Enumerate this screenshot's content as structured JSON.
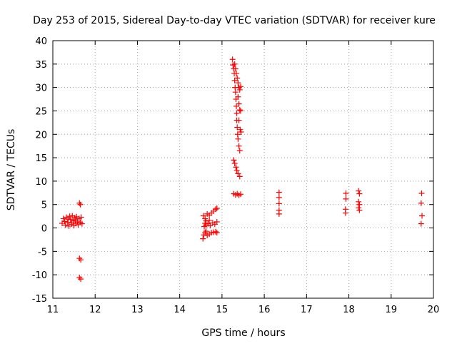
{
  "chart_data": {
    "type": "scatter",
    "title": "Day 253 of 2015, Sidereal Day-to-day VTEC variation (SDTVAR) for receiver kure",
    "xlabel": "GPS time / hours",
    "ylabel": "SDTVAR / TECUs",
    "xlim": [
      11,
      20
    ],
    "ylim": [
      -15,
      40
    ],
    "xticks": [
      "11",
      "12",
      "13",
      "14",
      "15",
      "16",
      "17",
      "18",
      "19",
      "20"
    ],
    "yticks": [
      "-15",
      "-10",
      "-5",
      "0",
      "5",
      "10",
      "15",
      "20",
      "25",
      "30",
      "35",
      "40"
    ],
    "grid": true,
    "marker": "plus",
    "color": "#ff0000",
    "points": [
      [
        11.22,
        1.0
      ],
      [
        11.25,
        2.0
      ],
      [
        11.28,
        1.4
      ],
      [
        11.3,
        0.6
      ],
      [
        11.32,
        2.3
      ],
      [
        11.35,
        1.2
      ],
      [
        11.38,
        0.4
      ],
      [
        11.4,
        2.5
      ],
      [
        11.42,
        1.8
      ],
      [
        11.44,
        0.8
      ],
      [
        11.46,
        2.6
      ],
      [
        11.48,
        1.5
      ],
      [
        11.5,
        0.5
      ],
      [
        11.52,
        2.2
      ],
      [
        11.54,
        1.0
      ],
      [
        11.56,
        2.4
      ],
      [
        11.58,
        1.3
      ],
      [
        11.6,
        0.7
      ],
      [
        11.62,
        2.0
      ],
      [
        11.65,
        1.2
      ],
      [
        11.67,
        2.3
      ],
      [
        11.69,
        0.9
      ],
      [
        11.36,
        1.9
      ],
      [
        11.44,
        1.1
      ],
      [
        11.53,
        1.7
      ],
      [
        11.63,
        5.3
      ],
      [
        11.65,
        5.0
      ],
      [
        11.63,
        -6.5
      ],
      [
        11.66,
        -6.8
      ],
      [
        11.63,
        -10.6
      ],
      [
        11.66,
        -10.9
      ],
      [
        14.55,
        -2.3
      ],
      [
        14.57,
        -1.5
      ],
      [
        14.6,
        -1.0
      ],
      [
        14.62,
        -0.7
      ],
      [
        14.65,
        -1.6
      ],
      [
        14.7,
        -1.3
      ],
      [
        14.75,
        -1.0
      ],
      [
        14.8,
        -0.9
      ],
      [
        14.85,
        -0.8
      ],
      [
        14.88,
        -1.0
      ],
      [
        14.56,
        2.6
      ],
      [
        14.6,
        2.0
      ],
      [
        14.62,
        1.5
      ],
      [
        14.65,
        3.0
      ],
      [
        14.7,
        2.7
      ],
      [
        14.75,
        3.2
      ],
      [
        14.8,
        3.6
      ],
      [
        14.85,
        4.0
      ],
      [
        14.88,
        4.2
      ],
      [
        14.58,
        0.3
      ],
      [
        14.62,
        0.6
      ],
      [
        14.67,
        0.9
      ],
      [
        14.72,
        0.5
      ],
      [
        14.78,
        1.1
      ],
      [
        14.83,
        0.8
      ],
      [
        14.88,
        1.3
      ],
      [
        14.6,
        1.0
      ],
      [
        14.7,
        1.6
      ],
      [
        15.25,
        36.0
      ],
      [
        15.26,
        34.8
      ],
      [
        15.28,
        34.0
      ],
      [
        15.29,
        33.0
      ],
      [
        15.3,
        31.5
      ],
      [
        15.31,
        30.0
      ],
      [
        15.32,
        29.0
      ],
      [
        15.33,
        27.5
      ],
      [
        15.34,
        26.0
      ],
      [
        15.35,
        24.5
      ],
      [
        15.35,
        23.0
      ],
      [
        15.36,
        21.5
      ],
      [
        15.37,
        20.0
      ],
      [
        15.38,
        19.0
      ],
      [
        15.4,
        17.5
      ],
      [
        15.42,
        16.5
      ],
      [
        15.3,
        35.0
      ],
      [
        15.32,
        34.0
      ],
      [
        15.34,
        33.0
      ],
      [
        15.36,
        32.0
      ],
      [
        15.38,
        31.0
      ],
      [
        15.4,
        30.0
      ],
      [
        15.42,
        29.5
      ],
      [
        15.44,
        30.2
      ],
      [
        15.38,
        28.0
      ],
      [
        15.4,
        26.5
      ],
      [
        15.42,
        25.2
      ],
      [
        15.44,
        25.0
      ],
      [
        15.4,
        23.0
      ],
      [
        15.43,
        21.0
      ],
      [
        15.45,
        20.5
      ],
      [
        15.28,
        14.5
      ],
      [
        15.3,
        13.8
      ],
      [
        15.33,
        13.0
      ],
      [
        15.35,
        12.3
      ],
      [
        15.38,
        11.6
      ],
      [
        15.42,
        11.0
      ],
      [
        15.28,
        7.3
      ],
      [
        15.32,
        7.1
      ],
      [
        15.36,
        7.3
      ],
      [
        15.4,
        7.0
      ],
      [
        15.44,
        7.2
      ],
      [
        16.35,
        7.6
      ],
      [
        16.35,
        6.5
      ],
      [
        16.35,
        5.2
      ],
      [
        16.35,
        3.8
      ],
      [
        16.35,
        3.0
      ],
      [
        17.93,
        7.4
      ],
      [
        17.93,
        6.2
      ],
      [
        17.92,
        4.0
      ],
      [
        17.92,
        3.2
      ],
      [
        18.23,
        7.9
      ],
      [
        18.25,
        7.3
      ],
      [
        18.23,
        5.6
      ],
      [
        18.25,
        5.0
      ],
      [
        18.23,
        4.3
      ],
      [
        18.25,
        3.8
      ],
      [
        19.72,
        7.4
      ],
      [
        19.71,
        5.3
      ],
      [
        19.73,
        2.6
      ],
      [
        19.71,
        0.9
      ]
    ]
  }
}
